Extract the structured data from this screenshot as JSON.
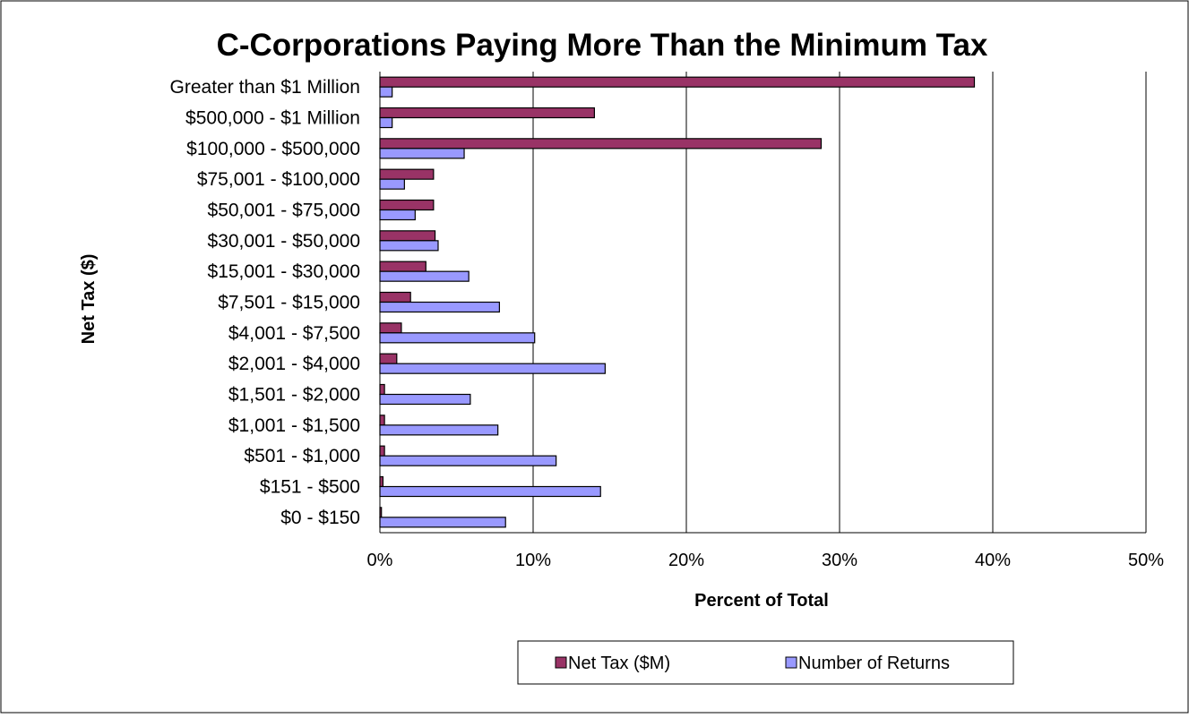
{
  "chart_data": {
    "type": "bar",
    "orientation": "horizontal",
    "title": "C-Corporations Paying More Than the Minimum Tax",
    "xlabel": "Percent of Total",
    "ylabel": "Net Tax ($)",
    "xlim": [
      0,
      50
    ],
    "xticks": [
      0,
      10,
      20,
      30,
      40,
      50
    ],
    "x_tick_suffix": "%",
    "grid": "vertical",
    "legend_position": "bottom",
    "categories": [
      "Greater than $1 Million",
      "$500,000 - $1 Million",
      "$100,000 - $500,000",
      "$75,001 - $100,000",
      "$50,001 - $75,000",
      "$30,001 - $50,000",
      "$15,001 - $30,000",
      "$7,501 - $15,000",
      "$4,001 - $7,500",
      "$2,001 - $4,000",
      "$1,501 - $2,000",
      "$1,001 - $1,500",
      "$501 - $1,000",
      "$151 - $500",
      "$0 - $150"
    ],
    "series": [
      {
        "name": "Net Tax ($M)",
        "color": "#993366",
        "values": [
          38.8,
          14.0,
          28.8,
          3.5,
          3.5,
          3.6,
          3.0,
          2.0,
          1.4,
          1.1,
          0.3,
          0.3,
          0.3,
          0.2,
          0.1
        ]
      },
      {
        "name": "Number of Returns",
        "color": "#9999FF",
        "values": [
          0.8,
          0.8,
          5.5,
          1.6,
          2.3,
          3.8,
          5.8,
          7.8,
          10.1,
          14.7,
          5.9,
          7.7,
          11.5,
          14.4,
          8.2
        ]
      }
    ]
  }
}
